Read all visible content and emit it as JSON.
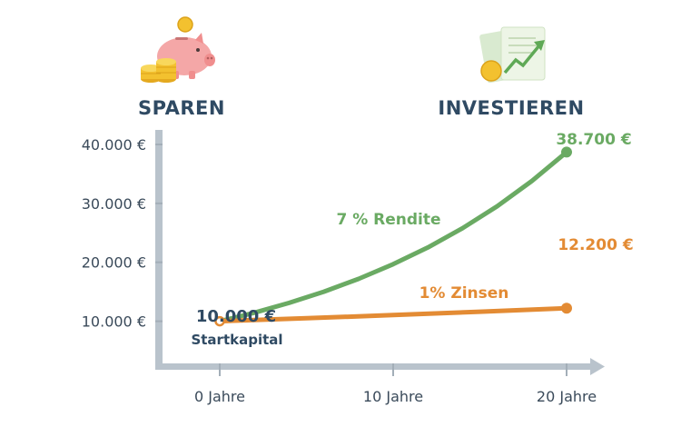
{
  "header": {
    "left": "SPAREN",
    "right": "INVESTIEREN",
    "left_icon": "piggy-bank-icon",
    "right_icon": "investment-chart-icon"
  },
  "colors": {
    "axis": "#b9c3cc",
    "green": "#6aaa63",
    "orange": "#e38b34",
    "navy": "#2f4a63"
  },
  "chart_data": {
    "type": "line",
    "xlim": [
      0,
      20
    ],
    "ylim": [
      5000,
      40000
    ],
    "x_ticks": [
      0,
      10,
      20
    ],
    "x_tick_labels": [
      "0 Jahre",
      "10 Jahre",
      "20 Jahre"
    ],
    "y_ticks": [
      10000,
      20000,
      30000,
      40000
    ],
    "y_tick_labels": [
      "10.000 €",
      "20.000 €",
      "30.000 €",
      "40.000 €"
    ],
    "series": [
      {
        "name": "7 % Rendite",
        "color": "#6aaa63",
        "x": [
          0,
          2,
          4,
          6,
          8,
          10,
          12,
          14,
          16,
          18,
          20
        ],
        "y": [
          10000,
          11449,
          13108,
          15007,
          17182,
          19672,
          22522,
          25785,
          29522,
          33799,
          38700
        ],
        "end_label": "38.700 €"
      },
      {
        "name": "1% Zinsen",
        "color": "#e38b34",
        "x": [
          0,
          5,
          10,
          15,
          20
        ],
        "y": [
          10000,
          10510,
          11046,
          11610,
          12200
        ],
        "end_label": "12.200 €"
      }
    ],
    "start_point": {
      "value_label": "10.000 €",
      "caption": "Startkapital"
    }
  }
}
